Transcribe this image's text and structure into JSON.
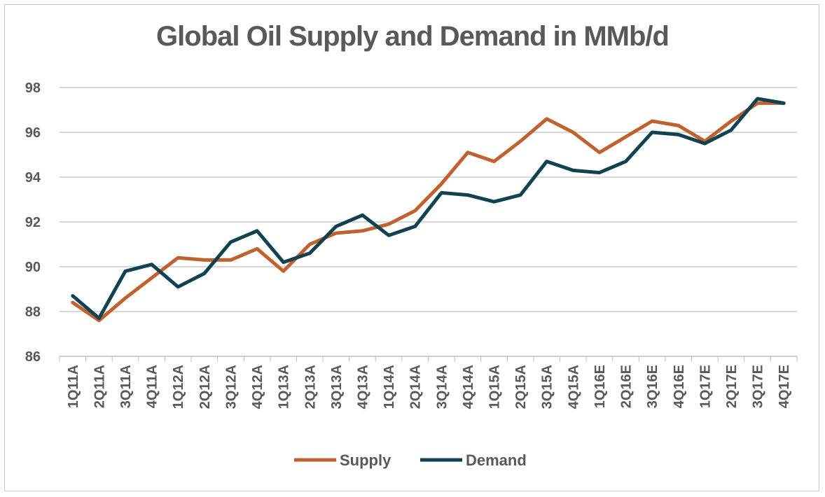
{
  "chart_data": {
    "type": "line",
    "title": "Global Oil Supply and Demand in MMb/d",
    "xlabel": "",
    "ylabel": "",
    "ylim": [
      86,
      98
    ],
    "yticks": [
      86,
      88,
      90,
      92,
      94,
      96,
      98
    ],
    "grid": true,
    "legend_position": "bottom",
    "categories": [
      "1Q11A",
      "2Q11A",
      "3Q11A",
      "4Q11A",
      "1Q12A",
      "2Q12A",
      "3Q12A",
      "4Q12A",
      "1Q13A",
      "2Q13A",
      "3Q13A",
      "4Q13A",
      "1Q14A",
      "2Q14A",
      "3Q14A",
      "4Q14A",
      "1Q15A",
      "2Q15A",
      "3Q15A",
      "4Q15A",
      "1Q16E",
      "2Q16E",
      "3Q16E",
      "4Q16E",
      "1Q17E",
      "2Q17E",
      "3Q17E",
      "4Q17E"
    ],
    "series": [
      {
        "name": "Supply",
        "color": "#C0622F",
        "values": [
          88.4,
          87.6,
          88.6,
          89.5,
          90.4,
          90.3,
          90.3,
          90.8,
          89.8,
          91.0,
          91.5,
          91.6,
          91.9,
          92.5,
          93.7,
          95.1,
          94.7,
          95.6,
          96.6,
          96.0,
          95.1,
          95.8,
          96.5,
          96.3,
          95.6,
          96.5,
          97.3,
          97.3
        ]
      },
      {
        "name": "Demand",
        "color": "#12414F",
        "values": [
          88.7,
          87.7,
          89.8,
          90.1,
          89.1,
          89.7,
          91.1,
          91.6,
          90.2,
          90.6,
          91.8,
          92.3,
          91.4,
          91.8,
          93.3,
          93.2,
          92.9,
          93.2,
          94.7,
          94.3,
          94.2,
          94.7,
          96.0,
          95.9,
          95.5,
          96.1,
          97.5,
          97.3
        ]
      }
    ]
  }
}
